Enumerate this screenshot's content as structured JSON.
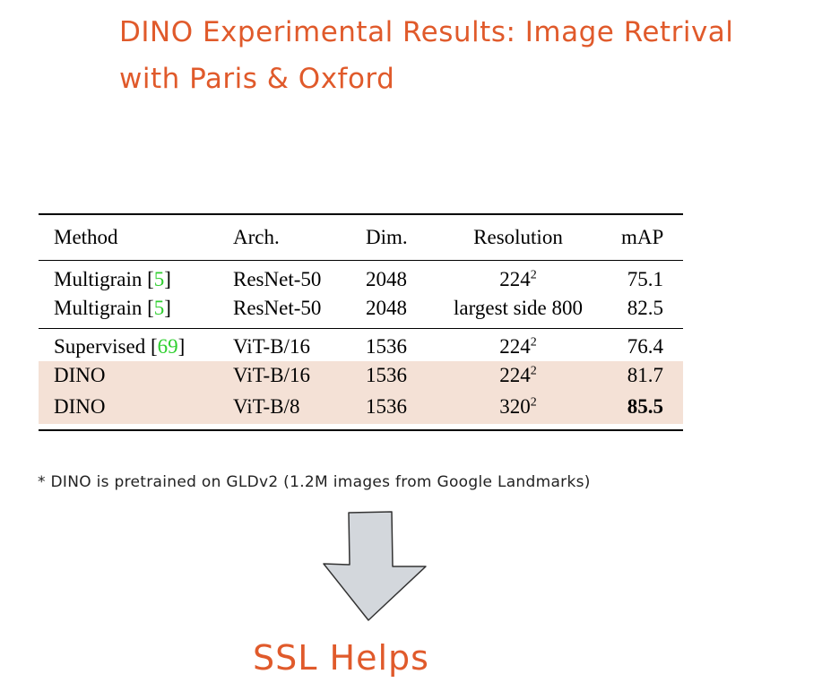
{
  "slide": {
    "title_line1": "DINO Experimental Results: Image Retrival",
    "title_line2": "with Paris & Oxford",
    "note": "* DINO is pretrained on GLDv2 (1.2M images from Google Landmarks)",
    "conclusion": "SSL Helps",
    "accent_color": "#e05a2b",
    "highlight_color": "#f4e1d6",
    "arrow_icon": "down-arrow-icon"
  },
  "table": {
    "headers": {
      "method": "Method",
      "arch": "Arch.",
      "dim": "Dim.",
      "resolution": "Resolution",
      "map": "mAP"
    },
    "rows": [
      {
        "method": "Multigrain [",
        "ref": "5",
        "method_end": "]",
        "arch": "ResNet-50",
        "dim": "2048",
        "res_base": "224",
        "res_sup": "2",
        "map": "75.1"
      },
      {
        "method": "Multigrain [",
        "ref": "5",
        "method_end": "]",
        "arch": "ResNet-50",
        "dim": "2048",
        "res_base": "largest side 800",
        "res_sup": "",
        "map": "82.5"
      },
      {
        "method": "Supervised [",
        "ref": "69",
        "method_end": "]",
        "arch": "ViT-B/16",
        "dim": "1536",
        "res_base": "224",
        "res_sup": "2",
        "map": "76.4"
      },
      {
        "method": "DINO",
        "ref": "",
        "method_end": "",
        "arch": "ViT-B/16",
        "dim": "1536",
        "res_base": "224",
        "res_sup": "2",
        "map": "81.7"
      },
      {
        "method": "DINO",
        "ref": "",
        "method_end": "",
        "arch": "ViT-B/8",
        "dim": "1536",
        "res_base": "320",
        "res_sup": "2",
        "map": "85.5"
      }
    ]
  }
}
